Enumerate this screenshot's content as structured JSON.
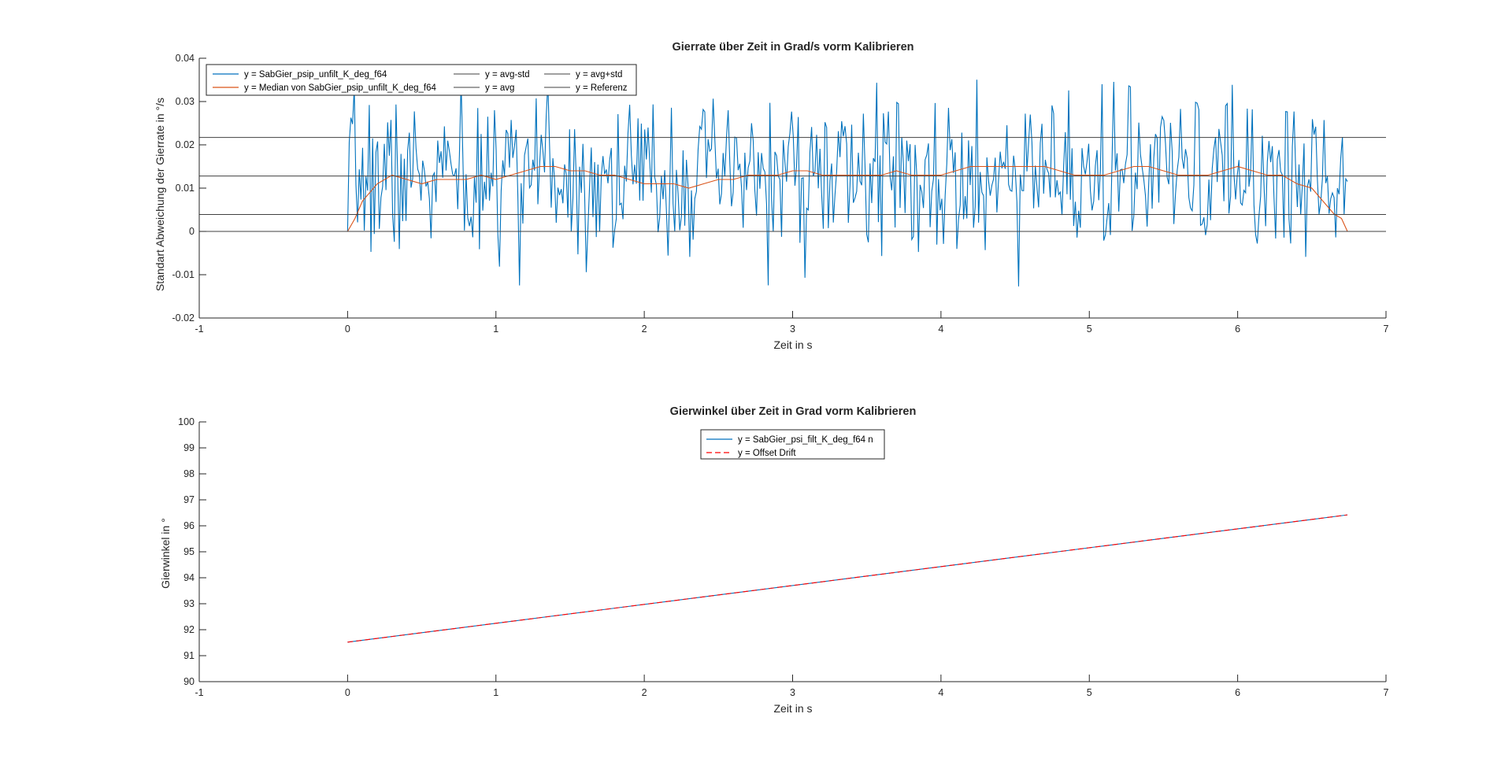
{
  "chart_data": [
    {
      "type": "line",
      "title": "Gierrate über Zeit in Grad/s vorm Kalibrieren",
      "xlabel": "Zeit in s",
      "ylabel": "Standart Abweichung der Gierrate  in  °/s",
      "xlim": [
        -1,
        7
      ],
      "ylim": [
        -0.02,
        0.04
      ],
      "xticks": [
        -1,
        0,
        1,
        2,
        3,
        4,
        5,
        6,
        7
      ],
      "yticks": [
        -0.02,
        -0.01,
        0,
        0.01,
        0.02,
        0.03,
        0.04
      ],
      "xtick_labels": [
        "-1",
        "0",
        "1",
        "2",
        "3",
        "4",
        "5",
        "6",
        "7"
      ],
      "ytick_labels": [
        "-0.02",
        "-0.01",
        "0",
        "0.01",
        "0.02",
        "0.03",
        "0.04"
      ],
      "legend_position": "top-left",
      "series": [
        {
          "name": "y = SabGier_psip_unfilt_K_deg_f64",
          "color": "#0072BD",
          "style": "solid",
          "noise": {
            "t_start": 0,
            "t_end": 6.74,
            "samples": 600,
            "mean": 0.0128,
            "std": 0.0089,
            "min": -0.0143,
            "max": 0.0353,
            "seed": 7
          }
        },
        {
          "name": "y = Median von SabGier_psip_unfilt_K_deg_f64",
          "color": "#D95319",
          "style": "solid",
          "x": [
            0,
            0.05,
            0.1,
            0.2,
            0.3,
            0.4,
            0.5,
            0.6,
            0.7,
            0.8,
            0.9,
            1.0,
            1.1,
            1.2,
            1.3,
            1.4,
            1.5,
            1.6,
            1.7,
            1.8,
            1.9,
            2.0,
            2.1,
            2.2,
            2.3,
            2.4,
            2.5,
            2.6,
            2.7,
            2.8,
            2.9,
            3.0,
            3.1,
            3.2,
            3.3,
            3.4,
            3.5,
            3.6,
            3.7,
            3.8,
            3.9,
            4.0,
            4.1,
            4.2,
            4.3,
            4.4,
            4.5,
            4.6,
            4.7,
            4.8,
            4.9,
            5.0,
            5.1,
            5.2,
            5.3,
            5.4,
            5.5,
            5.6,
            5.7,
            5.8,
            5.9,
            6.0,
            6.1,
            6.2,
            6.3,
            6.4,
            6.5,
            6.55,
            6.6,
            6.65,
            6.7,
            6.74
          ],
          "y": [
            0,
            0.003,
            0.007,
            0.011,
            0.013,
            0.012,
            0.011,
            0.012,
            0.012,
            0.012,
            0.013,
            0.012,
            0.013,
            0.014,
            0.015,
            0.015,
            0.014,
            0.014,
            0.013,
            0.013,
            0.012,
            0.011,
            0.011,
            0.011,
            0.01,
            0.011,
            0.012,
            0.012,
            0.013,
            0.013,
            0.013,
            0.014,
            0.014,
            0.013,
            0.013,
            0.013,
            0.013,
            0.013,
            0.014,
            0.013,
            0.013,
            0.013,
            0.014,
            0.015,
            0.015,
            0.015,
            0.015,
            0.015,
            0.015,
            0.014,
            0.013,
            0.013,
            0.013,
            0.014,
            0.015,
            0.015,
            0.014,
            0.013,
            0.013,
            0.013,
            0.014,
            0.015,
            0.014,
            0.013,
            0.013,
            0.011,
            0.01,
            0.008,
            0.006,
            0.004,
            0.003,
            0
          ]
        },
        {
          "name": "y = avg-std",
          "color": "#404040",
          "style": "solid",
          "x": [
            -1,
            7
          ],
          "y": [
            0.0039,
            0.0039
          ]
        },
        {
          "name": "y = avg",
          "color": "#404040",
          "style": "solid",
          "x": [
            -1,
            7
          ],
          "y": [
            0.0128,
            0.0128
          ]
        },
        {
          "name": "y = avg+std",
          "color": "#404040",
          "style": "solid",
          "x": [
            -1,
            7
          ],
          "y": [
            0.0217,
            0.0217
          ]
        },
        {
          "name": "y = Referenz",
          "color": "#404040",
          "style": "solid",
          "x": [
            -1,
            7
          ],
          "y": [
            0,
            0
          ]
        }
      ]
    },
    {
      "type": "line",
      "title": "Gierwinkel über Zeit in Grad vorm Kalibrieren",
      "xlabel": "Zeit in s",
      "ylabel": "Gierwinkel in °",
      "xlim": [
        -1,
        7
      ],
      "ylim": [
        90,
        100
      ],
      "xticks": [
        -1,
        0,
        1,
        2,
        3,
        4,
        5,
        6,
        7
      ],
      "yticks": [
        90,
        91,
        92,
        93,
        94,
        95,
        96,
        97,
        98,
        99,
        100
      ],
      "xtick_labels": [
        "-1",
        "0",
        "1",
        "2",
        "3",
        "4",
        "5",
        "6",
        "7"
      ],
      "ytick_labels": [
        "90",
        "91",
        "92",
        "93",
        "94",
        "95",
        "96",
        "97",
        "98",
        "99",
        "100"
      ],
      "legend_position": "top-center",
      "series": [
        {
          "name": "y = SabGier_psi_filt_K_deg_f64 n",
          "color": "#0072BD",
          "style": "solid",
          "x": [
            0,
            6.74
          ],
          "y": [
            91.52,
            96.42
          ]
        },
        {
          "name": "y = Offset Drift",
          "color": "#FF0000",
          "style": "dashed",
          "x": [
            0,
            6.74
          ],
          "y": [
            91.52,
            96.42
          ]
        }
      ]
    }
  ]
}
